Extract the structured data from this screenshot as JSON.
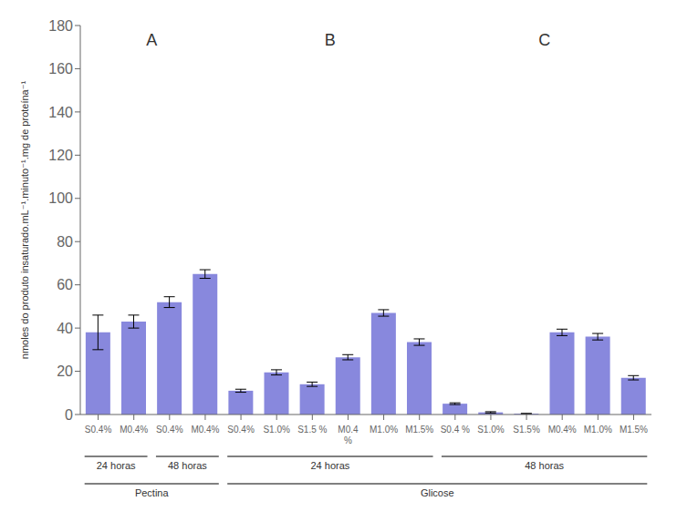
{
  "chart_data": {
    "type": "bar",
    "categories": [
      "S0.4%",
      "M0.4%",
      "S0.4%",
      "M0.4%",
      "S0.4%",
      "S1.0%",
      "S1.5 %",
      "M0.4\n%",
      "M1.0%",
      "M1.5%",
      "S0.4 %",
      "S1.0%",
      "S1.5%",
      "M0.4%",
      "M1.0%",
      "M1.5%"
    ],
    "values": [
      38,
      43,
      52,
      65,
      11,
      19.5,
      14,
      26.5,
      47,
      33.5,
      5,
      1.0,
      0.4,
      38,
      36,
      17
    ],
    "errors": [
      8,
      3,
      2.5,
      2,
      0.7,
      1.2,
      1.0,
      1.2,
      1.5,
      1.5,
      0.4,
      0.3,
      0.1,
      1.5,
      1.5,
      1.0
    ],
    "color": "#8888dd",
    "ylim": [
      0,
      180
    ],
    "yticks": [
      0,
      20,
      40,
      60,
      80,
      100,
      120,
      140,
      160,
      180
    ],
    "ylabel": "nmoles do produto insaturado.mL⁻¹.minuto⁻¹.mg de proteína⁻¹",
    "grid": false,
    "panels": [
      "A",
      "A",
      "A",
      "A",
      "B",
      "B",
      "B",
      "B",
      "B",
      "B",
      "C",
      "C",
      "C",
      "C",
      "C",
      "C"
    ],
    "groups": [
      "Pectina",
      "Pectina",
      "Pectina",
      "Pectina",
      "Glicose",
      "Glicose",
      "Glicose",
      "Glicose",
      "Glicose",
      "Glicose",
      "Glicose",
      "Glicose",
      "Glicose",
      "Glicose",
      "Glicose",
      "Glicose"
    ],
    "subgroups": [
      "24 horas",
      "24 horas",
      "48 horas",
      "48 horas",
      "24 horas",
      "24 horas",
      "24 horas",
      "24 horas",
      "24 horas",
      "24 horas",
      "48 horas",
      "48 horas",
      "48 horas",
      "48 horas",
      "48 horas",
      "48 horas"
    ]
  }
}
